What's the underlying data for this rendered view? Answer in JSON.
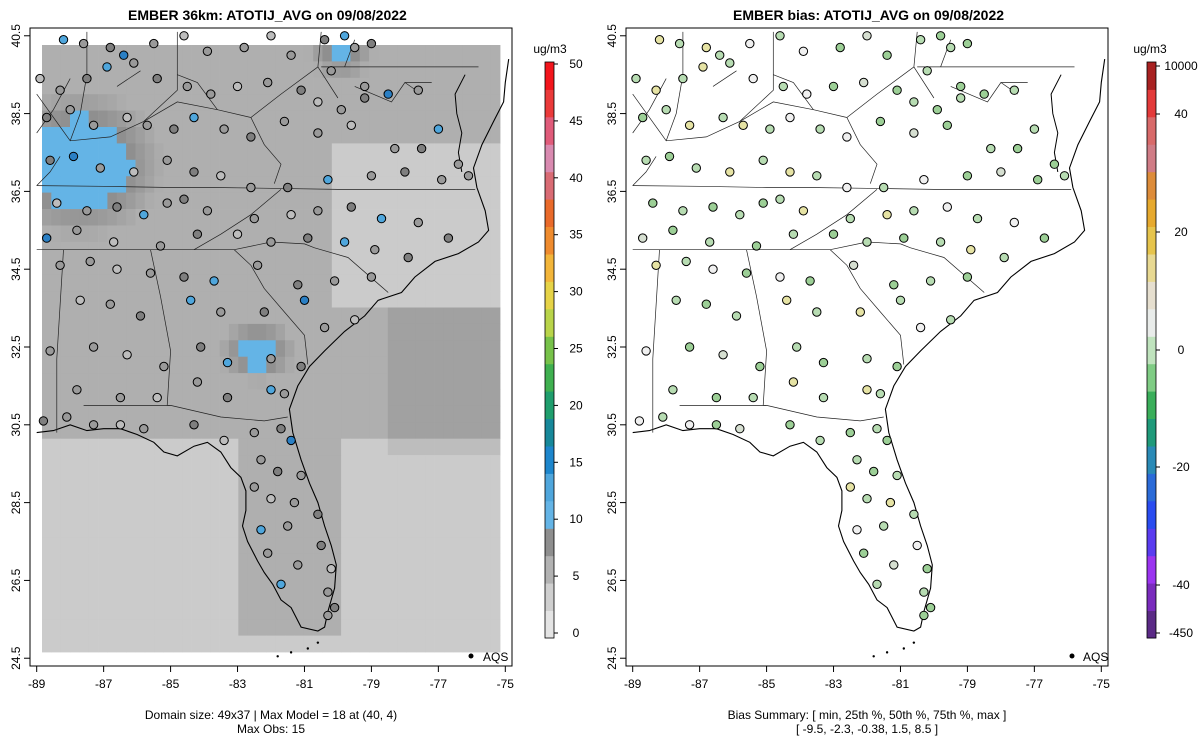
{
  "left": {
    "title": "EMBER 36km: ATOTIJ_AVG on 09/08/2022",
    "footer1": "Domain size: 49x37 | Max Model = 18 at (40, 4)",
    "footer2": "Max Obs: 15",
    "legend_marker": "AQS",
    "colorbar": {
      "unit": "ug/m3",
      "ticks": [
        "0",
        "5",
        "10",
        "15",
        "20",
        "25",
        "30",
        "35",
        "40",
        "45",
        "50"
      ],
      "range": [
        0,
        50
      ]
    }
  },
  "right": {
    "title": "EMBER bias: ATOTIJ_AVG on 09/08/2022",
    "footer1": "Bias Summary: [ min, 25th %, 50th %, 75th %, max ]",
    "footer2": "[ -9.5,   -2.3,   -0.38,   1.5,   8.5 ]",
    "legend_marker": "AQS",
    "colorbar": {
      "unit": "ug/m3",
      "ticks": [
        "10000",
        "40",
        "20",
        "0",
        "-20",
        "-40",
        "-450"
      ]
    }
  },
  "axes": {
    "x_ticks": [
      "-89",
      "-87",
      "-85",
      "-83",
      "-81",
      "-79",
      "-77",
      "-75"
    ],
    "y_ticks": [
      "40.5",
      "38.5",
      "36.5",
      "34.5",
      "32.5",
      "30.5",
      "28.5",
      "26.5",
      "24.5"
    ],
    "x_range": [
      -89.2,
      -74.8
    ],
    "y_range": [
      24.3,
      40.7
    ]
  },
  "colors": {
    "land_gray": "#c9c9c9",
    "sea_gray": "#e2e2e2",
    "high_blue": "#64b4e6",
    "station_blue": "#4fa6dc",
    "bias_green": "#a8d6a2",
    "bias_yellow": "#e8e2a2"
  }
}
